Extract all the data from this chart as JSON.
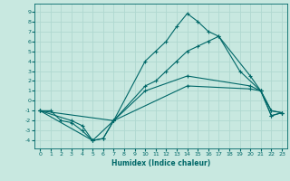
{
  "xlabel": "Humidex (Indice chaleur)",
  "bg_color": "#c8e8e0",
  "grid_color": "#b0d8d0",
  "line_color": "#006868",
  "xlim": [
    -0.5,
    23.5
  ],
  "ylim": [
    -4.8,
    9.8
  ],
  "xticks": [
    0,
    1,
    2,
    3,
    4,
    5,
    6,
    7,
    8,
    9,
    10,
    11,
    12,
    13,
    14,
    15,
    16,
    17,
    18,
    19,
    20,
    21,
    22,
    23
  ],
  "yticks": [
    -4,
    -3,
    -2,
    -1,
    0,
    1,
    2,
    3,
    4,
    5,
    6,
    7,
    8,
    9
  ],
  "series": [
    {
      "x": [
        0,
        1,
        2,
        3,
        4,
        5,
        6,
        7,
        10,
        11,
        12,
        13,
        14,
        15,
        16,
        17,
        19,
        21,
        22,
        23
      ],
      "y": [
        -1,
        -1,
        -2,
        -2.2,
        -3,
        -4,
        -3.8,
        -2,
        4,
        5,
        6,
        7.5,
        8.8,
        8,
        7,
        6.5,
        3,
        1,
        -1.5,
        -1.2
      ]
    },
    {
      "x": [
        0,
        3,
        4,
        5,
        6,
        7,
        10,
        11,
        12,
        13,
        14,
        15,
        16,
        17,
        20,
        21,
        22,
        23
      ],
      "y": [
        -1,
        -2,
        -2.5,
        -4,
        -3.8,
        -2,
        1.5,
        2,
        3,
        4,
        5,
        5.5,
        6,
        6.5,
        2.5,
        1,
        -1,
        -1.2
      ]
    },
    {
      "x": [
        0,
        5,
        7,
        10,
        14,
        20,
        21,
        22,
        23
      ],
      "y": [
        -1,
        -4,
        -2,
        1,
        2.5,
        1.5,
        1,
        -1,
        -1.2
      ]
    },
    {
      "x": [
        0,
        7,
        14,
        20,
        21,
        22,
        23
      ],
      "y": [
        -1,
        -2,
        1.5,
        1.2,
        1,
        -1.5,
        -1.2
      ]
    }
  ]
}
